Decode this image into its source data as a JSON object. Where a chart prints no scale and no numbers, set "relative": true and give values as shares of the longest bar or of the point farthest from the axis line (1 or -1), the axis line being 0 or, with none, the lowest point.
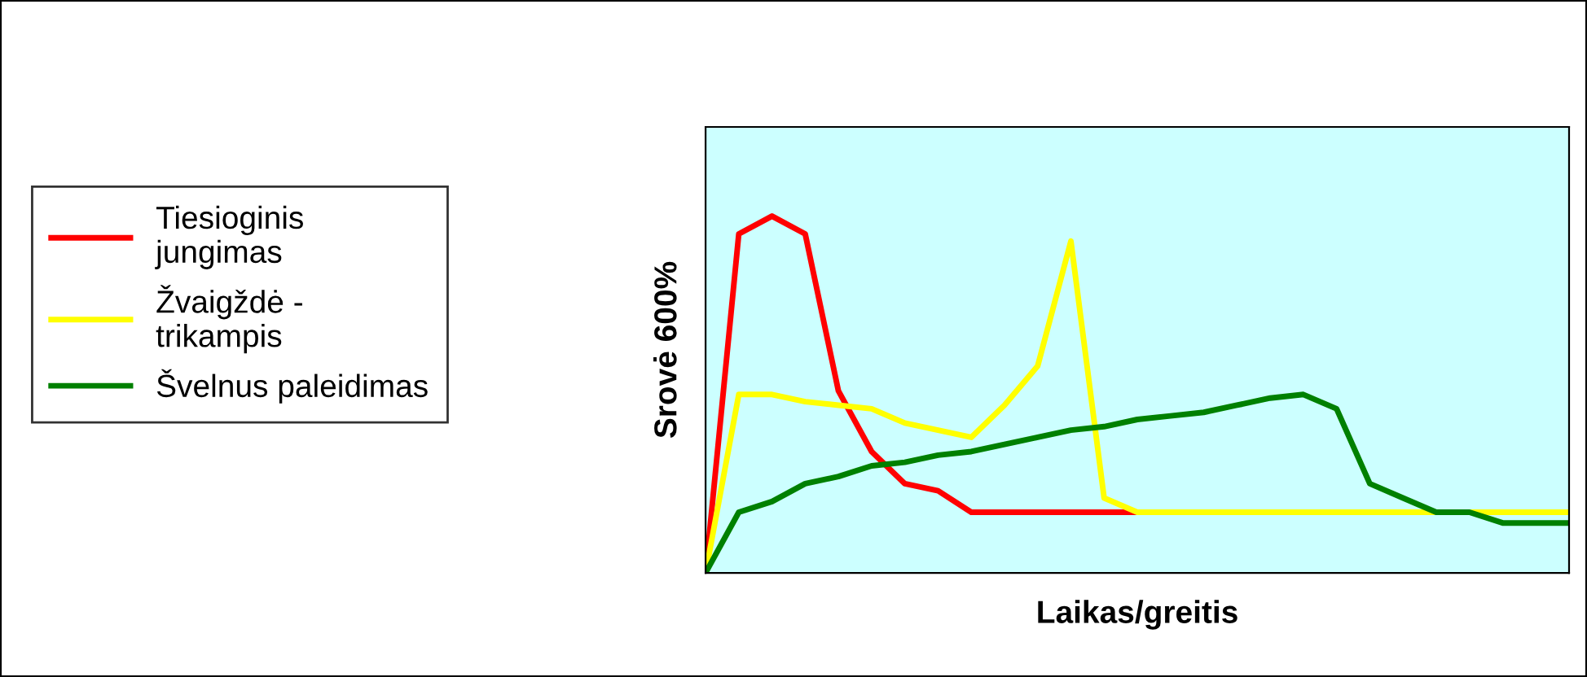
{
  "chart_data": {
    "type": "line",
    "relative": true,
    "xlabel": "Laikas/greitis",
    "ylabel": "Srovė 600%",
    "legend": "left",
    "categories": [
      null,
      null,
      null,
      null,
      null,
      null,
      null,
      null,
      null,
      null,
      null,
      null,
      null,
      null,
      null,
      null,
      null,
      null,
      null,
      null,
      null,
      null,
      null,
      null,
      null,
      null,
      null
    ],
    "series": [
      {
        "name": "Tiesioginis\njungimas",
        "color": "#ff0000",
        "values": [
          0,
          0.95,
          1,
          0.95,
          0.51,
          0.34,
          0.25,
          0.23,
          0.17,
          0.17,
          0.17,
          0.17,
          0.17,
          0.17,
          null,
          null,
          null,
          null,
          null,
          null,
          null,
          null,
          null,
          null,
          null,
          null,
          null
        ]
      },
      {
        "name": "Žvaigždė -\ntrikampis",
        "color": "#ffff00",
        "values": [
          0,
          0.5,
          0.5,
          0.48,
          0.47,
          0.46,
          0.42,
          0.4,
          0.38,
          0.47,
          0.58,
          0.93,
          0.21,
          0.17,
          0.17,
          0.17,
          0.17,
          0.17,
          0.17,
          0.17,
          0.17,
          0.17,
          0.17,
          0.17,
          0.17,
          0.17,
          0.17
        ]
      },
      {
        "name": "Švelnus paleidimas",
        "color": "#008000",
        "values": [
          0,
          0.17,
          0.2,
          0.25,
          0.27,
          0.3,
          0.31,
          0.33,
          0.34,
          0.36,
          0.38,
          0.4,
          0.41,
          0.43,
          0.44,
          0.45,
          0.47,
          0.49,
          0.5,
          0.46,
          0.25,
          0.21,
          0.17,
          0.17,
          0.14,
          0.14,
          0.14
        ]
      }
    ]
  }
}
